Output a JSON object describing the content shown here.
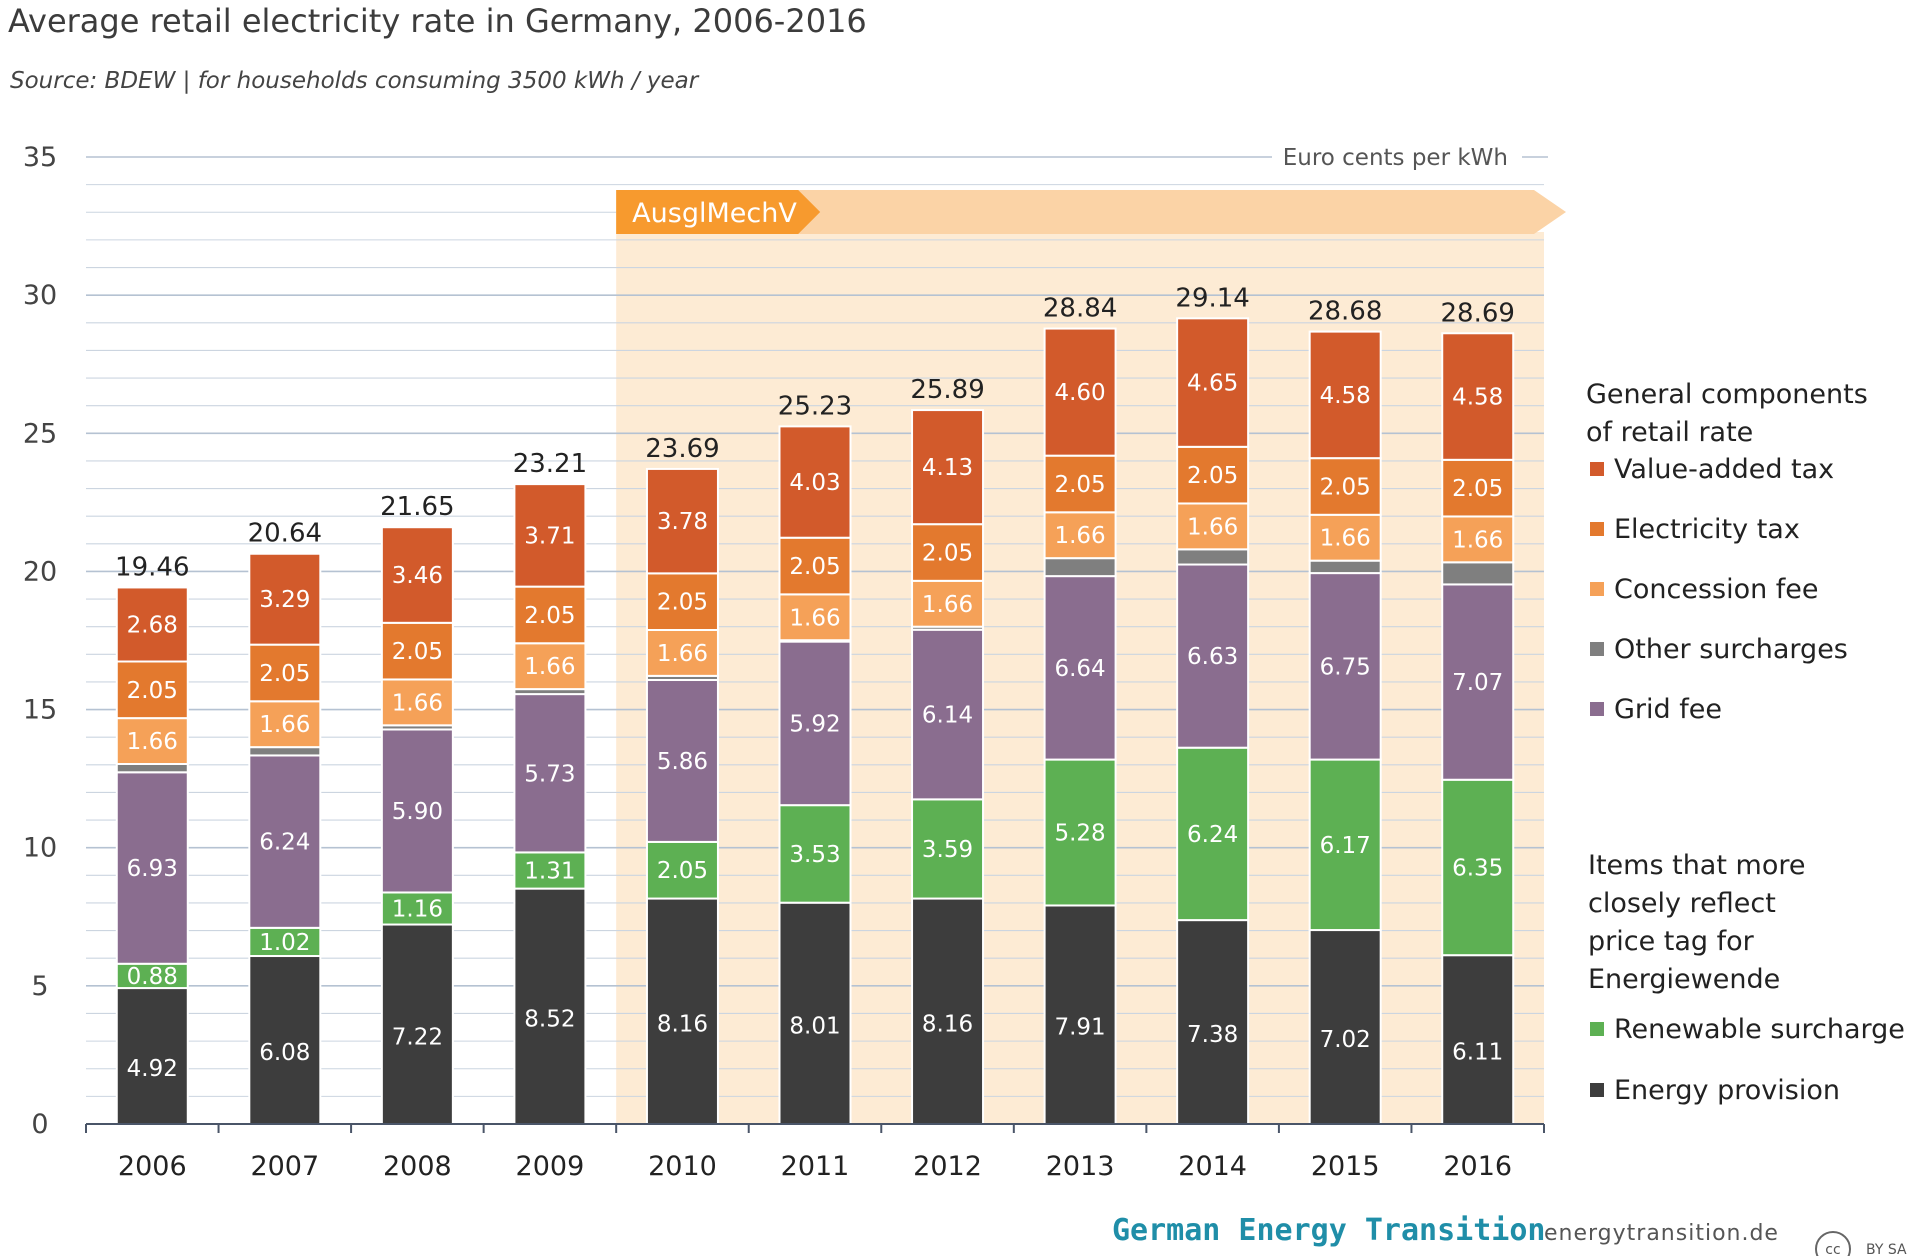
{
  "title": "Average retail electricity rate in Germany, 2006-2016",
  "subtitle": "Source: BDEW | for households consuming 3500 kWh / year",
  "footer": {
    "brand": "German Energy Transition",
    "site": "energytransition.de",
    "license_cc": "cc",
    "license_terms": "BY SA"
  },
  "banner": {
    "label": "AusglMechV",
    "start_year": "2010",
    "end_year": "2016"
  },
  "legend": {
    "general_heading": [
      "General components",
      "of retail rate"
    ],
    "items_heading": [
      "Items that more",
      "closely reflect",
      "price tag for",
      "Energiewende"
    ]
  },
  "colors": {
    "vat": "#d25a2b",
    "electricity_tax": "#e3792e",
    "concession": "#f5a158",
    "other": "#7f7f7f",
    "grid": "#8a6d8f",
    "renewable": "#5db053",
    "energy": "#3d3d3d",
    "banner": "#f79a2e",
    "banner_bg": "#fdebd4",
    "grid_line": "#ccd5e0"
  },
  "chart_data": {
    "type": "bar",
    "stacked": true,
    "title": "Average retail electricity rate in Germany, 2006-2016",
    "ylabel": "Euro cents per kWh",
    "xlabel": "",
    "ylim": [
      0,
      35
    ],
    "yticks": [
      0,
      5,
      10,
      15,
      20,
      25,
      30,
      35
    ],
    "categories": [
      "2006",
      "2007",
      "2008",
      "2009",
      "2010",
      "2011",
      "2012",
      "2013",
      "2014",
      "2015",
      "2016"
    ],
    "totals": [
      "19.46",
      "20.64",
      "21.65",
      "23.21",
      "23.69",
      "25.23",
      "25.89",
      "28.84",
      "29.14",
      "28.68",
      "28.69"
    ],
    "series": [
      {
        "key": "energy",
        "name": "Energy provision",
        "values": [
          4.92,
          6.08,
          7.22,
          8.52,
          8.16,
          8.01,
          8.16,
          7.91,
          7.38,
          7.02,
          6.11
        ],
        "labels": [
          "4.92",
          "6.08",
          "7.22",
          "8.52",
          "8.16",
          "8.01",
          "8.16",
          "7.91",
          "7.38",
          "7.02",
          "6.11"
        ]
      },
      {
        "key": "renewable",
        "name": "Renewable surcharge",
        "values": [
          0.88,
          1.02,
          1.16,
          1.31,
          2.05,
          3.53,
          3.59,
          5.28,
          6.24,
          6.17,
          6.35
        ],
        "labels": [
          "0.88",
          "1.02",
          "1.16",
          "1.31",
          "2.05",
          "3.53",
          "3.59",
          "5.28",
          "6.24",
          "6.17",
          "6.35"
        ]
      },
      {
        "key": "grid",
        "name": "Grid fee",
        "values": [
          6.93,
          6.24,
          5.9,
          5.73,
          5.86,
          5.92,
          6.14,
          6.64,
          6.63,
          6.75,
          7.07
        ],
        "labels": [
          "6.93",
          "6.24",
          "5.90",
          "5.73",
          "5.86",
          "5.92",
          "6.14",
          "6.64",
          "6.63",
          "6.75",
          "7.07"
        ]
      },
      {
        "key": "other",
        "name": "Other surcharges",
        "values": [
          0.3,
          0.3,
          0.15,
          0.18,
          0.15,
          0.05,
          0.11,
          0.65,
          0.55,
          0.45,
          0.8
        ],
        "labels": [
          "",
          "",
          "",
          "",
          "",
          "",
          "",
          "",
          "",
          "",
          ""
        ]
      },
      {
        "key": "concession",
        "name": "Concession fee",
        "values": [
          1.66,
          1.66,
          1.66,
          1.66,
          1.66,
          1.66,
          1.66,
          1.66,
          1.66,
          1.66,
          1.66
        ],
        "labels": [
          "1.66",
          "1.66",
          "1.66",
          "1.66",
          "1.66",
          "1.66",
          "1.66",
          "1.66",
          "1.66",
          "1.66",
          "1.66"
        ]
      },
      {
        "key": "electricity_tax",
        "name": "Electricity tax",
        "values": [
          2.05,
          2.05,
          2.05,
          2.05,
          2.05,
          2.05,
          2.05,
          2.05,
          2.05,
          2.05,
          2.05
        ],
        "labels": [
          "2.05",
          "2.05",
          "2.05",
          "2.05",
          "2.05",
          "2.05",
          "2.05",
          "2.05",
          "2.05",
          "2.05",
          "2.05"
        ]
      },
      {
        "key": "vat",
        "name": "Value-added tax",
        "values": [
          2.68,
          3.29,
          3.46,
          3.71,
          3.78,
          4.03,
          4.13,
          4.6,
          4.65,
          4.58,
          4.58
        ],
        "labels": [
          "2.68",
          "3.29",
          "3.46",
          "3.71",
          "3.78",
          "4.03",
          "4.13",
          "4.60",
          "4.65",
          "4.58",
          "4.58"
        ]
      }
    ],
    "legend_general": [
      "Value-added tax",
      "Electricity tax",
      "Concession fee",
      "Other surcharges",
      "Grid fee"
    ],
    "legend_items": [
      "Renewable surcharge",
      "Energy provision"
    ]
  }
}
